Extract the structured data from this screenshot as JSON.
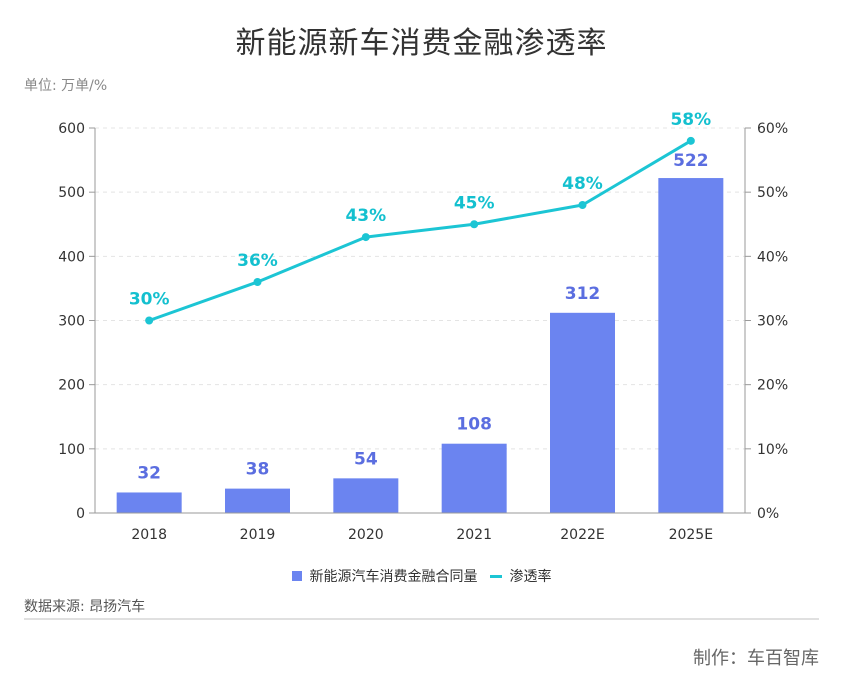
{
  "title": "新能源新车消费金融渗透率",
  "unit_label": "单位: 万单/%",
  "source": "数据来源: 昂扬汽车",
  "credit": "制作：车百智库",
  "colors": {
    "bar": "#6b84f0",
    "bar_label": "#5b6ee0",
    "line": "#1cc5d4",
    "line_label": "#14c0cf",
    "grid": "#e4e4e4"
  },
  "chart_data": {
    "type": "bar+line",
    "title": "新能源新车消费金融渗透率",
    "categories": [
      "2018",
      "2019",
      "2020",
      "2021",
      "2022E",
      "2025E"
    ],
    "series": [
      {
        "name": "新能源汽车消费金融合同量",
        "type": "bar",
        "axis": "left",
        "values": [
          32,
          38,
          54,
          108,
          312,
          522
        ]
      },
      {
        "name": "渗透率",
        "type": "line",
        "axis": "right",
        "values": [
          30,
          36,
          43,
          45,
          48,
          58
        ]
      }
    ],
    "y_left": {
      "min": 0,
      "max": 600,
      "ticks": [
        "0",
        "100",
        "200",
        "300",
        "400",
        "500",
        "600"
      ]
    },
    "y_right": {
      "min": 0,
      "max": 60,
      "ticks": [
        "0%",
        "10%",
        "20%",
        "30%",
        "40%",
        "50%",
        "60%"
      ]
    },
    "bar_labels": [
      "32",
      "38",
      "54",
      "108",
      "312",
      "522"
    ],
    "line_labels": [
      "30%",
      "36%",
      "43%",
      "45%",
      "48%",
      "58%"
    ],
    "grid": true,
    "legend_position": "bottom"
  }
}
